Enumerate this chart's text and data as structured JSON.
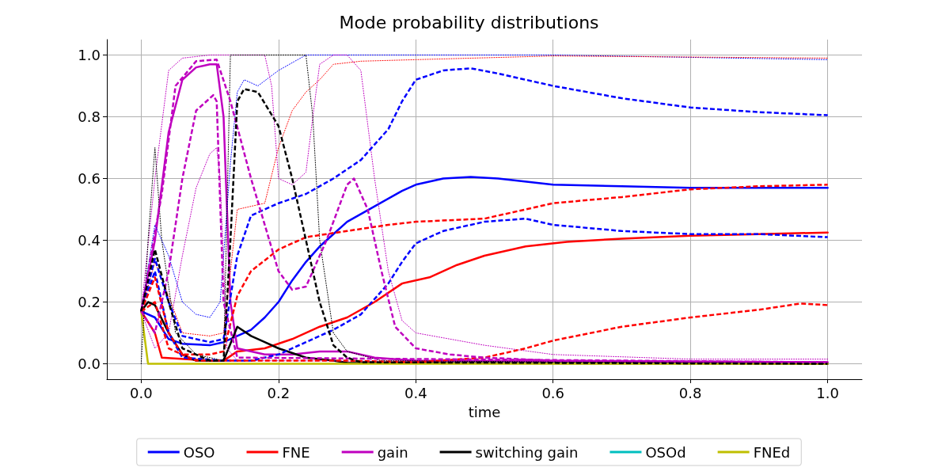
{
  "chart_data": {
    "type": "line",
    "title": "Mode probability distributions",
    "xlabel": "time",
    "xlim": [
      -0.05,
      1.05
    ],
    "ylim": [
      -0.05,
      1.05
    ],
    "xticks": [
      {
        "value": 0,
        "label": "0.0"
      },
      {
        "value": 0.2,
        "label": "0.2"
      },
      {
        "value": 0.4,
        "label": "0.4"
      },
      {
        "value": 0.6,
        "label": "0.6"
      },
      {
        "value": 0.8,
        "label": "0.8"
      },
      {
        "value": 1,
        "label": "1.0"
      }
    ],
    "yticks": [
      {
        "value": 0,
        "label": "0.0"
      },
      {
        "value": 0.2,
        "label": "0.2"
      },
      {
        "value": 0.4,
        "label": "0.4"
      },
      {
        "value": 0.6,
        "label": "0.6"
      },
      {
        "value": 0.8,
        "label": "0.8"
      },
      {
        "value": 1,
        "label": "1.0"
      }
    ],
    "grid": true,
    "legend": "bottom",
    "series": [
      {
        "line_style": "dotted",
        "color": "#0000ff",
        "x": [
          0,
          0.02,
          0.04,
          0.06,
          0.08,
          0.1,
          0.115,
          0.13,
          0.14,
          0.15,
          0.17,
          0.2,
          0.24,
          0.6,
          1.0
        ],
        "values": [
          0.17,
          0.45,
          0.35,
          0.2,
          0.16,
          0.15,
          0.2,
          0.65,
          0.88,
          0.92,
          0.9,
          0.95,
          1.0,
          1.0,
          0.985
        ]
      },
      {
        "line_style": "dotted",
        "color": "#ff0000",
        "x": [
          0,
          0.02,
          0.04,
          0.06,
          0.1,
          0.12,
          0.14,
          0.18,
          0.2,
          0.22,
          0.24,
          0.26,
          0.28,
          0.32,
          0.4,
          0.6,
          1.0
        ],
        "values": [
          0.17,
          0.33,
          0.22,
          0.1,
          0.09,
          0.1,
          0.5,
          0.52,
          0.7,
          0.82,
          0.88,
          0.92,
          0.97,
          0.98,
          0.985,
          0.997,
          0.99
        ]
      },
      {
        "line_style": "dotted",
        "color": "#bf00bf",
        "x": [
          0,
          0.02,
          0.04,
          0.06,
          0.1,
          0.18,
          0.19,
          0.2,
          0.22,
          0.24,
          0.25,
          0.26,
          0.28,
          0.3,
          0.32,
          0.34,
          0.36,
          0.38,
          0.4,
          0.5,
          0.6,
          0.8,
          1.0
        ],
        "values": [
          0.17,
          0.6,
          0.95,
          0.99,
          1.0,
          1.0,
          0.9,
          0.6,
          0.58,
          0.62,
          0.8,
          0.97,
          1.0,
          1.0,
          0.95,
          0.6,
          0.3,
          0.14,
          0.1,
          0.06,
          0.03,
          0.015,
          0.015
        ]
      },
      {
        "line_style": "dotted",
        "color": "#bf00bf",
        "x": [
          0,
          0.02,
          0.04,
          0.06,
          0.08,
          0.1,
          0.11,
          0.115,
          0.125,
          0.14,
          1.0
        ],
        "values": [
          0.17,
          0.05,
          0.1,
          0.35,
          0.57,
          0.68,
          0.7,
          0.6,
          0.05,
          0.01,
          0.005
        ]
      },
      {
        "line_style": "dotted",
        "color": "#000000",
        "x": [
          0,
          0.01,
          0.02,
          0.03,
          0.05,
          0.08,
          0.12,
          0.125,
          0.13,
          0.24,
          0.25,
          0.26,
          0.28,
          0.3,
          0.35,
          1.0
        ],
        "values": [
          0,
          0.4,
          0.7,
          0.4,
          0.1,
          0.03,
          0.01,
          0.5,
          1.0,
          1.0,
          0.8,
          0.4,
          0.1,
          0.04,
          0.01,
          0
        ]
      },
      {
        "line_style": "dashed",
        "color": "#0000ff",
        "x": [
          0,
          0.02,
          0.04,
          0.06,
          0.1,
          0.12,
          0.14,
          0.16,
          0.2,
          0.24,
          0.28,
          0.32,
          0.36,
          0.38,
          0.4,
          0.44,
          0.48,
          0.52,
          0.6,
          0.7,
          0.8,
          0.9,
          1.0
        ],
        "values": [
          0.17,
          0.34,
          0.2,
          0.09,
          0.07,
          0.08,
          0.35,
          0.48,
          0.52,
          0.55,
          0.6,
          0.66,
          0.76,
          0.85,
          0.92,
          0.95,
          0.957,
          0.94,
          0.9,
          0.86,
          0.83,
          0.815,
          0.805
        ]
      },
      {
        "line_style": "dashed",
        "color": "#0000ff",
        "x": [
          0,
          0.02,
          0.04,
          0.06,
          0.12,
          0.16,
          0.2,
          0.24,
          0.28,
          0.32,
          0.36,
          0.38,
          0.4,
          0.44,
          0.5,
          0.56,
          0.6,
          0.7,
          0.8,
          0.9,
          1.0
        ],
        "values": [
          0.17,
          0.3,
          0.1,
          0.02,
          0.01,
          0.01,
          0.03,
          0.07,
          0.11,
          0.16,
          0.26,
          0.33,
          0.39,
          0.43,
          0.46,
          0.47,
          0.45,
          0.43,
          0.42,
          0.42,
          0.41
        ]
      },
      {
        "line_style": "dashed",
        "color": "#ff0000",
        "x": [
          0,
          0.02,
          0.04,
          0.06,
          0.1,
          0.12,
          0.14,
          0.16,
          0.2,
          0.24,
          0.3,
          0.36,
          0.4,
          0.5,
          0.56,
          0.6,
          0.7,
          0.8,
          0.9,
          1.0
        ],
        "values": [
          0.17,
          0.28,
          0.1,
          0.03,
          0.03,
          0.04,
          0.22,
          0.3,
          0.37,
          0.41,
          0.43,
          0.45,
          0.46,
          0.47,
          0.5,
          0.52,
          0.54,
          0.565,
          0.575,
          0.58
        ]
      },
      {
        "line_style": "dashed",
        "color": "#ff0000",
        "x": [
          0,
          0.02,
          0.04,
          0.08,
          0.3,
          0.4,
          0.5,
          0.56,
          0.6,
          0.7,
          0.8,
          0.9,
          0.96,
          1.0
        ],
        "values": [
          0.17,
          0.2,
          0.05,
          0.01,
          0.01,
          0.005,
          0.02,
          0.05,
          0.075,
          0.12,
          0.15,
          0.175,
          0.195,
          0.19
        ]
      },
      {
        "line_style": "dashed",
        "color": "#bf00bf",
        "x": [
          0,
          0.03,
          0.05,
          0.08,
          0.11,
          0.13,
          0.16,
          0.18,
          0.2,
          0.22,
          0.24,
          0.27,
          0.3,
          0.31,
          0.33,
          0.35,
          0.37,
          0.4,
          0.45,
          0.5,
          0.6,
          1.0
        ],
        "values": [
          0.17,
          0.55,
          0.9,
          0.98,
          0.985,
          0.85,
          0.6,
          0.45,
          0.3,
          0.24,
          0.25,
          0.4,
          0.58,
          0.6,
          0.5,
          0.3,
          0.12,
          0.05,
          0.03,
          0.02,
          0.01,
          0.005
        ]
      },
      {
        "line_style": "dashed",
        "color": "#bf00bf",
        "x": [
          0,
          0.02,
          0.04,
          0.06,
          0.08,
          0.1,
          0.105,
          0.11,
          0.12,
          0.14,
          1.0
        ],
        "values": [
          0.17,
          0.1,
          0.3,
          0.6,
          0.82,
          0.86,
          0.87,
          0.85,
          0.2,
          0.02,
          0.005
        ]
      },
      {
        "line_style": "dashed",
        "color": "#000000",
        "x": [
          0,
          0.02,
          0.04,
          0.06,
          0.1,
          0.12,
          0.13,
          0.14,
          0.15,
          0.17,
          0.2,
          0.22,
          0.24,
          0.26,
          0.28,
          0.3,
          0.32,
          1.0
        ],
        "values": [
          0.17,
          0.37,
          0.2,
          0.05,
          0.01,
          0.01,
          0.4,
          0.85,
          0.89,
          0.88,
          0.77,
          0.6,
          0.4,
          0.2,
          0.06,
          0.02,
          0.005,
          0
        ]
      },
      {
        "name": "OSO",
        "line_style": "solid",
        "color": "#0000ff",
        "x": [
          0,
          0.02,
          0.04,
          0.06,
          0.1,
          0.12,
          0.14,
          0.16,
          0.18,
          0.2,
          0.22,
          0.24,
          0.26,
          0.28,
          0.3,
          0.34,
          0.38,
          0.4,
          0.44,
          0.48,
          0.52,
          0.6,
          0.7,
          0.8,
          0.9,
          1.0
        ],
        "values": [
          0.17,
          0.15,
          0.08,
          0.065,
          0.06,
          0.07,
          0.09,
          0.11,
          0.15,
          0.2,
          0.27,
          0.33,
          0.38,
          0.42,
          0.46,
          0.51,
          0.56,
          0.58,
          0.6,
          0.605,
          0.6,
          0.58,
          0.575,
          0.57,
          0.57,
          0.57
        ]
      },
      {
        "name": "FNE",
        "line_style": "solid",
        "color": "#ff0000",
        "x": [
          0,
          0.02,
          0.03,
          0.1,
          0.12,
          0.14,
          0.18,
          0.22,
          0.26,
          0.3,
          0.34,
          0.38,
          0.42,
          0.46,
          0.5,
          0.56,
          0.62,
          0.7,
          0.8,
          0.9,
          1.0
        ],
        "values": [
          0.17,
          0.1,
          0.02,
          0.01,
          0.01,
          0.04,
          0.05,
          0.08,
          0.12,
          0.15,
          0.2,
          0.26,
          0.28,
          0.32,
          0.35,
          0.38,
          0.395,
          0.405,
          0.415,
          0.42,
          0.425
        ]
      },
      {
        "name": "gain",
        "line_style": "solid",
        "color": "#bf00bf",
        "x": [
          0,
          0.02,
          0.04,
          0.06,
          0.08,
          0.1,
          0.11,
          0.12,
          0.13,
          0.14,
          0.18,
          0.22,
          0.26,
          0.3,
          0.34,
          0.4,
          1.0
        ],
        "values": [
          0.17,
          0.4,
          0.75,
          0.92,
          0.96,
          0.97,
          0.97,
          0.8,
          0.2,
          0.05,
          0.03,
          0.03,
          0.04,
          0.04,
          0.02,
          0.01,
          0.005
        ]
      },
      {
        "name": "switching gain",
        "line_style": "solid",
        "color": "#000000",
        "x": [
          0,
          0.01,
          0.02,
          0.04,
          0.06,
          0.08,
          0.12,
          0.14,
          0.16,
          0.18,
          0.2,
          0.24,
          0.28,
          0.3,
          1.0
        ],
        "values": [
          0.17,
          0.2,
          0.19,
          0.1,
          0.03,
          0.01,
          0.01,
          0.12,
          0.09,
          0.07,
          0.05,
          0.02,
          0.01,
          0.003,
          0
        ]
      },
      {
        "name": "OSOd",
        "line_style": "solid",
        "color": "#00bfbf"
      },
      {
        "name": "FNEd",
        "line_style": "solid",
        "color": "#bfbf00",
        "x": [
          0,
          0.01,
          1.0
        ],
        "values": [
          0.17,
          0,
          0
        ]
      }
    ]
  }
}
